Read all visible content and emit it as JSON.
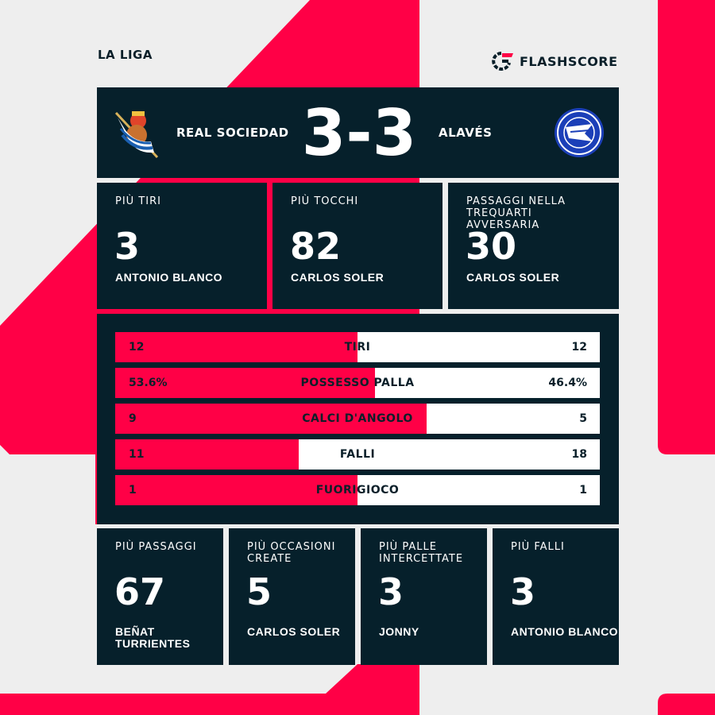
{
  "league": "LA LIGA",
  "brand": "FLASHSCORE",
  "colors": {
    "accent": "#ff0046",
    "panel": "#06202b",
    "background": "#eeeeee"
  },
  "match": {
    "home": "REAL SOCIEDAD",
    "away": "ALAVÉS",
    "score": "3-3",
    "home_logo": "real-sociedad-crest",
    "away_logo": "alaves-crest"
  },
  "top_cards": [
    {
      "label": "PIÙ TIRI",
      "value": "3",
      "player": "ANTONIO BLANCO"
    },
    {
      "label": "PIÙ TOCCHI",
      "value": "82",
      "player": "CARLOS SOLER"
    },
    {
      "label": "PASSAGGI NELLA TREQUARTI AVVERSARIA",
      "value": "30",
      "player": "CARLOS SOLER"
    }
  ],
  "stats": [
    {
      "name": "TIRI",
      "home": "12",
      "away": "12",
      "home_share": 50
    },
    {
      "name": "POSSESSO PALLA",
      "home": "53.6%",
      "away": "46.4%",
      "home_share": 53.6
    },
    {
      "name": "CALCI D'ANGOLO",
      "home": "9",
      "away": "5",
      "home_share": 64.3
    },
    {
      "name": "FALLI",
      "home": "11",
      "away": "18",
      "home_share": 37.9
    },
    {
      "name": "FUORIGIOCO",
      "home": "1",
      "away": "1",
      "home_share": 50
    }
  ],
  "bottom_cards": [
    {
      "label": "PIÙ PASSAGGI",
      "value": "67",
      "player": "BEÑAT TURRIENTES"
    },
    {
      "label": "PIÙ OCCASIONI CREATE",
      "value": "5",
      "player": "CARLOS SOLER"
    },
    {
      "label": "PIÙ PALLE INTERCETTATE",
      "value": "3",
      "player": "JONNY"
    },
    {
      "label": "PIÙ FALLI",
      "value": "3",
      "player": "ANTONIO BLANCO"
    }
  ]
}
